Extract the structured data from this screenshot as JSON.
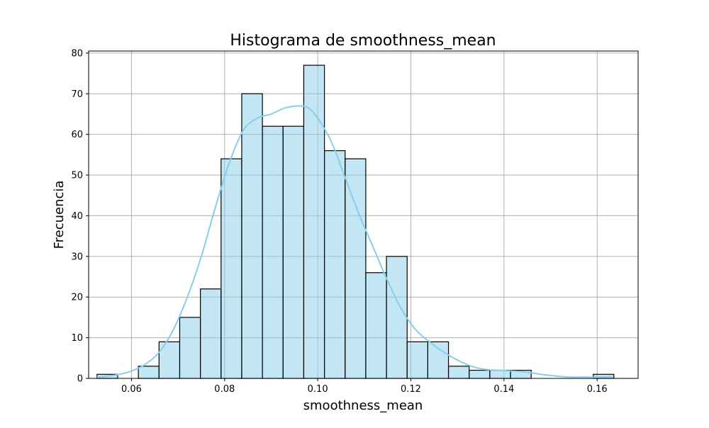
{
  "chart_data": {
    "type": "bar",
    "title": "Histograma de smoothness_mean",
    "xlabel": "smoothness_mean",
    "ylabel": "Frecuencia",
    "xlim": [
      0.0508,
      0.1688
    ],
    "ylim": [
      0,
      80.5
    ],
    "xticks": [
      0.06,
      0.08,
      0.1,
      0.12,
      0.14,
      0.16
    ],
    "xtick_labels": [
      "0.06",
      "0.08",
      "0.10",
      "0.12",
      "0.14",
      "0.16"
    ],
    "yticks": [
      0,
      10,
      20,
      30,
      40,
      50,
      60,
      70,
      80
    ],
    "ytick_labels": [
      "0",
      "10",
      "20",
      "30",
      "40",
      "50",
      "60",
      "70",
      "80"
    ],
    "grid": true,
    "bin_start": 0.0526,
    "bin_width": 0.00444,
    "counts": [
      1,
      0,
      3,
      9,
      15,
      22,
      54,
      70,
      62,
      62,
      77,
      56,
      54,
      26,
      30,
      9,
      9,
      3,
      2,
      2,
      2,
      0,
      0,
      0,
      1
    ],
    "kde": {
      "x": [
        0.0526,
        0.0565,
        0.06,
        0.063,
        0.066,
        0.069,
        0.072,
        0.075,
        0.078,
        0.081,
        0.084,
        0.087,
        0.09,
        0.093,
        0.096,
        0.098,
        0.1,
        0.103,
        0.106,
        0.109,
        0.112,
        0.115,
        0.118,
        0.121,
        0.124,
        0.127,
        0.13,
        0.133,
        0.136,
        0.139,
        0.142,
        0.145,
        0.148,
        0.151,
        0.154,
        0.157,
        0.16,
        0.1633
      ],
      "y": [
        0.3,
        0.8,
        1.8,
        3.5,
        6.5,
        12,
        20,
        30,
        42,
        53,
        61,
        64,
        65,
        66.5,
        67,
        66.5,
        64,
        58,
        49,
        40,
        32,
        24,
        17,
        12,
        9,
        6.5,
        4.5,
        3,
        2.2,
        2.0,
        1.8,
        1.5,
        1.0,
        0.6,
        0.3,
        0.3,
        0.3,
        0.4
      ]
    },
    "colors": {
      "bar_fill": "#87ceeb",
      "bar_fill_opacity": 0.5,
      "bar_edge": "#000000",
      "kde_line": "#87ceeb",
      "grid": "#b0b0b0"
    }
  }
}
